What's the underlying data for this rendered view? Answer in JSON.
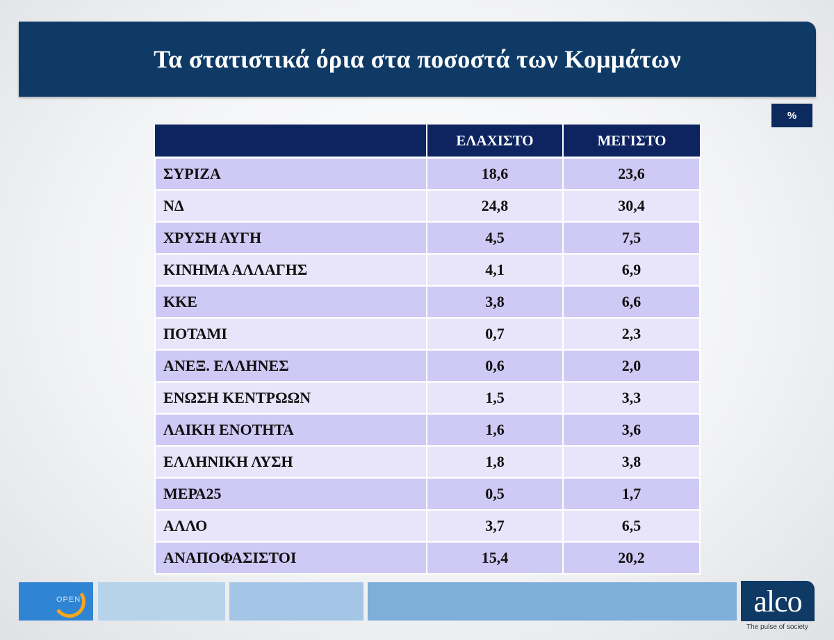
{
  "title": "Τα στατιστικά όρια στα ποσοστά των Κομμάτων",
  "unit": "%",
  "table": {
    "headers": [
      "",
      "ΕΛΑΧΙΣΤΟ",
      "ΜΕΓΙΣΤΟ"
    ],
    "rows": [
      {
        "party": "ΣΥΡΙΖΑ",
        "min": "18,6",
        "max": "23,6"
      },
      {
        "party": "ΝΔ",
        "min": "24,8",
        "max": "30,4"
      },
      {
        "party": "ΧΡΥΣΗ ΑΥΓΗ",
        "min": "4,5",
        "max": "7,5"
      },
      {
        "party": "ΚΙΝΗΜΑ ΑΛΛΑΓΗΣ",
        "min": "4,1",
        "max": "6,9"
      },
      {
        "party": "ΚΚΕ",
        "min": "3,8",
        "max": "6,6"
      },
      {
        "party": "ΠΟΤΑΜΙ",
        "min": "0,7",
        "max": "2,3"
      },
      {
        "party": "ΑΝΕΞ. ΕΛΛΗΝΕΣ",
        "min": "0,6",
        "max": "2,0"
      },
      {
        "party": "ΕΝΩΣΗ ΚΕΝΤΡΩΩΝ",
        "min": "1,5",
        "max": "3,3"
      },
      {
        "party": "ΛΑΙΚΗ ΕΝΟΤΗΤΑ",
        "min": "1,6",
        "max": "3,6"
      },
      {
        "party": "ΕΛΛΗΝΙΚΗ ΛΥΣΗ",
        "min": "1,8",
        "max": "3,8"
      },
      {
        "party": "ΜΕΡΑ25",
        "min": "0,5",
        "max": "1,7"
      },
      {
        "party": "ΑΛΛΟ",
        "min": "3,7",
        "max": "6,5"
      },
      {
        "party": "ΑΝΑΠΟΦΑΣΙΣΤΟΙ",
        "min": "15,4",
        "max": "20,2"
      }
    ]
  },
  "footer": {
    "left_logo_text": "OPEN",
    "right_logo_text": "alco",
    "right_logo_tagline": "The pulse of society",
    "stripe_colors": [
      "#b7d3ec",
      "#a3c6e6",
      "#7eaed9"
    ]
  },
  "colors": {
    "title_bar": "#0f3a66",
    "header_row": "#0d2460",
    "row_dark": "#cfc9f5",
    "row_light": "#e8e5fb"
  }
}
